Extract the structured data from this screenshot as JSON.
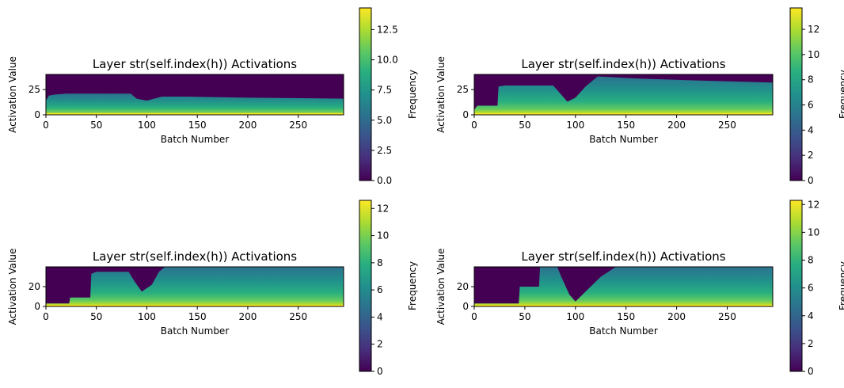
{
  "chart_data": [
    {
      "type": "heatmap",
      "title": "Layer str(self.index(h)) Activations",
      "xlabel": "Batch Number",
      "ylabel": "Activation Value",
      "xlim": [
        0,
        295
      ],
      "ylim": [
        0,
        40
      ],
      "xticks": [
        0,
        50,
        100,
        150,
        200,
        250
      ],
      "yticks": [
        0,
        25
      ],
      "colormap": "viridis",
      "colorbar": {
        "label": "Frequency",
        "min": 0,
        "max": 14.3,
        "ticks": [
          "0.0",
          "2.5",
          "5.0",
          "7.5",
          "10.0",
          "12.5"
        ]
      },
      "upper_envelope": [
        [
          0,
          14
        ],
        [
          3,
          19
        ],
        [
          8,
          20
        ],
        [
          20,
          21
        ],
        [
          84,
          21
        ],
        [
          90,
          16
        ],
        [
          100,
          14
        ],
        [
          115,
          18
        ],
        [
          140,
          18
        ],
        [
          200,
          17
        ],
        [
          295,
          16
        ]
      ]
    },
    {
      "type": "heatmap",
      "title": "Layer str(self.index(h)) Activations",
      "xlabel": "Batch Number",
      "ylabel": "Activation Value",
      "xlim": [
        0,
        295
      ],
      "ylim": [
        0,
        40
      ],
      "xticks": [
        0,
        50,
        100,
        150,
        200,
        250
      ],
      "yticks": [
        0,
        25
      ],
      "colormap": "viridis",
      "colorbar": {
        "label": "Frequency",
        "min": 0,
        "max": 13.7,
        "ticks": [
          "0",
          "2",
          "4",
          "6",
          "8",
          "10",
          "12"
        ]
      },
      "upper_envelope": [
        [
          0,
          5
        ],
        [
          3,
          9
        ],
        [
          23,
          9
        ],
        [
          24,
          28
        ],
        [
          30,
          29
        ],
        [
          78,
          29
        ],
        [
          86,
          20
        ],
        [
          92,
          13
        ],
        [
          100,
          17
        ],
        [
          110,
          28
        ],
        [
          122,
          38
        ],
        [
          160,
          36
        ],
        [
          220,
          34
        ],
        [
          295,
          32
        ]
      ]
    },
    {
      "type": "heatmap",
      "title": "Layer str(self.index(h)) Activations",
      "xlabel": "Batch Number",
      "ylabel": "Activation Value",
      "xlim": [
        0,
        295
      ],
      "ylim": [
        0,
        40
      ],
      "xticks": [
        0,
        50,
        100,
        150,
        200,
        250
      ],
      "yticks": [
        0,
        20
      ],
      "colormap": "viridis",
      "colorbar": {
        "label": "Frequency",
        "min": 0,
        "max": 12.6,
        "ticks": [
          "0",
          "2",
          "4",
          "6",
          "8",
          "10",
          "12"
        ]
      },
      "upper_envelope": [
        [
          0,
          3
        ],
        [
          23,
          3
        ],
        [
          24,
          9
        ],
        [
          44,
          9
        ],
        [
          45,
          33
        ],
        [
          50,
          35
        ],
        [
          82,
          35
        ],
        [
          88,
          25
        ],
        [
          95,
          15
        ],
        [
          105,
          22
        ],
        [
          112,
          35
        ],
        [
          118,
          40
        ],
        [
          295,
          40
        ]
      ]
    },
    {
      "type": "heatmap",
      "title": "Layer str(self.index(h)) Activations",
      "xlabel": "Batch Number",
      "ylabel": "Activation Value",
      "xlim": [
        0,
        295
      ],
      "ylim": [
        0,
        40
      ],
      "xticks": [
        0,
        50,
        100,
        150,
        200,
        250
      ],
      "yticks": [
        0,
        20
      ],
      "colormap": "viridis",
      "colorbar": {
        "label": "Frequency",
        "min": 0,
        "max": 12.3,
        "ticks": [
          "0",
          "2",
          "4",
          "6",
          "8",
          "10",
          "12"
        ]
      },
      "upper_envelope": [
        [
          0,
          3
        ],
        [
          44,
          3
        ],
        [
          45,
          20
        ],
        [
          64,
          20
        ],
        [
          65,
          40
        ],
        [
          82,
          40
        ],
        [
          86,
          30
        ],
        [
          94,
          12
        ],
        [
          100,
          5
        ],
        [
          110,
          15
        ],
        [
          125,
          30
        ],
        [
          140,
          40
        ],
        [
          295,
          40
        ]
      ]
    }
  ]
}
